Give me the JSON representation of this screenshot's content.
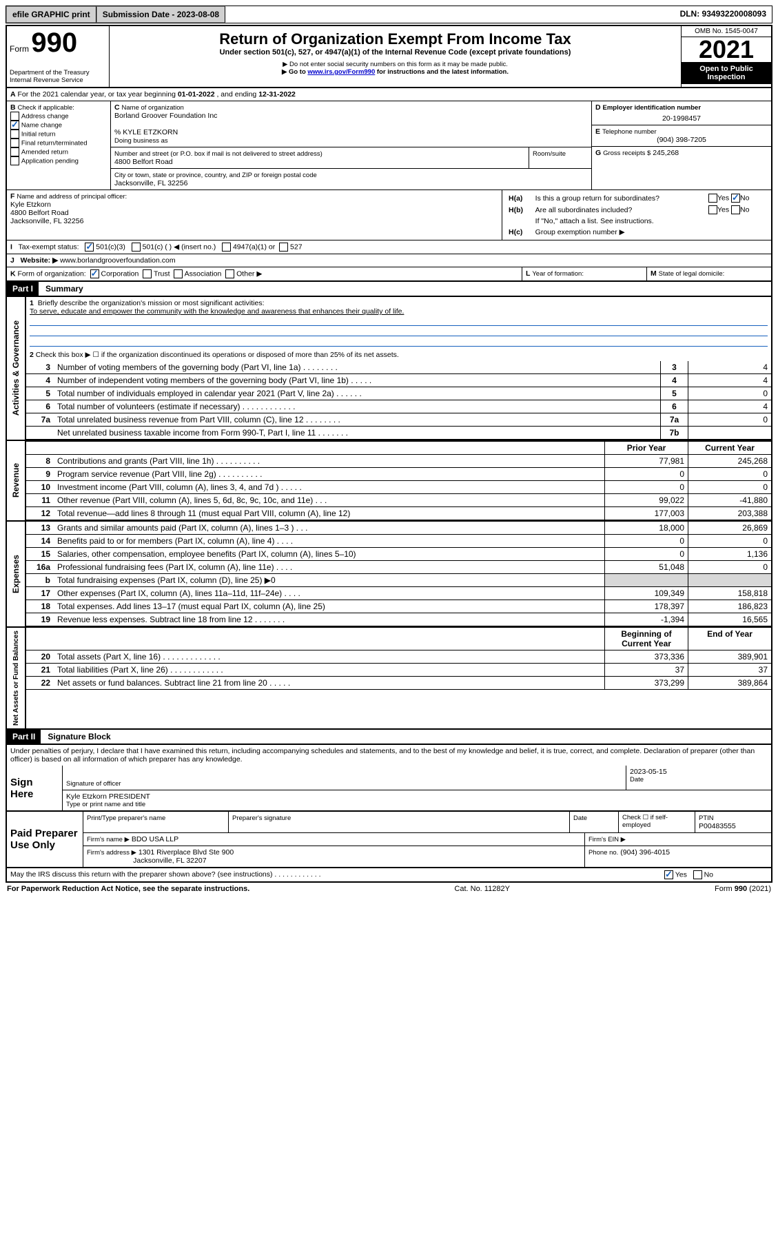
{
  "topbar": {
    "efile": "efile GRAPHIC print",
    "submission_label": "Submission Date - 2023-08-08",
    "dln": "DLN: 93493220008093"
  },
  "header": {
    "form_word": "Form",
    "form_num": "990",
    "title": "Return of Organization Exempt From Income Tax",
    "subtitle": "Under section 501(c), 527, or 4947(a)(1) of the Internal Revenue Code (except private foundations)",
    "note1": "▶ Do not enter social security numbers on this form as it may be made public.",
    "note2_pre": "▶ Go to ",
    "note2_link": "www.irs.gov/Form990",
    "note2_post": " for instructions and the latest information.",
    "dept": "Department of the Treasury",
    "irs": "Internal Revenue Service",
    "omb": "OMB No. 1545-0047",
    "year": "2021",
    "open_public": "Open to Public Inspection"
  },
  "periodA": {
    "text_pre": "For the 2021 calendar year, or tax year beginning ",
    "begin": "01-01-2022",
    "mid": " , and ending ",
    "end": "12-31-2022"
  },
  "boxB": {
    "label": "Check if applicable:",
    "addr_change": "Address change",
    "name_change": "Name change",
    "initial": "Initial return",
    "final": "Final return/terminated",
    "amended": "Amended return",
    "app_pending": "Application pending"
  },
  "boxC": {
    "name_label": "Name of organization",
    "name": "Borland Groover Foundation Inc",
    "care_of": "% KYLE ETZKORN",
    "dba_label": "Doing business as",
    "street_label": "Number and street (or P.O. box if mail is not delivered to street address)",
    "room_label": "Room/suite",
    "street": "4800 Belfort Road",
    "city_label": "City or town, state or province, country, and ZIP or foreign postal code",
    "city": "Jacksonville, FL  32256"
  },
  "boxD": {
    "label": "Employer identification number",
    "ein": "20-1998457"
  },
  "boxE": {
    "label": "Telephone number",
    "phone": "(904) 398-7205"
  },
  "boxG": {
    "label": "Gross receipts $",
    "amount": "245,268"
  },
  "boxF": {
    "label": "Name and address of principal officer:",
    "name": "Kyle Etzkorn",
    "street": "4800 Belfort Road",
    "city": "Jacksonville, FL  32256"
  },
  "boxH": {
    "ha": "Is this a group return for subordinates?",
    "hb": "Are all subordinates included?",
    "hnote": "If \"No,\" attach a list. See instructions.",
    "hc": "Group exemption number ▶",
    "yes": "Yes",
    "no": "No"
  },
  "boxI": {
    "label": "Tax-exempt status:",
    "opt1": "501(c)(3)",
    "opt2": "501(c) (  ) ◀ (insert no.)",
    "opt3": "4947(a)(1) or",
    "opt4": "527"
  },
  "boxJ": {
    "label": "Website: ▶",
    "url": "www.borlandgrooverfoundation.com"
  },
  "boxK": {
    "label": "Form of organization:",
    "corp": "Corporation",
    "trust": "Trust",
    "assoc": "Association",
    "other": "Other ▶"
  },
  "boxL": {
    "label": "Year of formation:"
  },
  "boxM": {
    "label": "State of legal domicile:"
  },
  "part1": {
    "header": "Part I",
    "title": "Summary",
    "line1_label": "Briefly describe the organization's mission or most significant activities:",
    "mission": "To serve, educate and empower the community with the knowledge and awareness that enhances their quality of life.",
    "line2": "Check this box ▶ ☐  if the organization discontinued its operations or disposed of more than 25% of its net assets.",
    "sections": {
      "gov": "Activities & Governance",
      "rev": "Revenue",
      "exp": "Expenses",
      "net": "Net Assets or Fund Balances"
    },
    "col_prior": "Prior Year",
    "col_current": "Current Year",
    "col_begin": "Beginning of Current Year",
    "col_end": "End of Year",
    "lines_gov": [
      {
        "n": "3",
        "desc": "Number of voting members of the governing body (Part VI, line 1a)   .    .    .    .    .    .    .    .",
        "box": "3",
        "val": "4"
      },
      {
        "n": "4",
        "desc": "Number of independent voting members of the governing body (Part VI, line 1b)   .    .    .    .    .",
        "box": "4",
        "val": "4"
      },
      {
        "n": "5",
        "desc": "Total number of individuals employed in calendar year 2021 (Part V, line 2a)   .    .    .    .    .    .",
        "box": "5",
        "val": "0"
      },
      {
        "n": "6",
        "desc": "Total number of volunteers (estimate if necessary)   .    .    .    .    .    .    .    .    .    .    .    .",
        "box": "6",
        "val": "4"
      },
      {
        "n": "7a",
        "desc": "Total unrelated business revenue from Part VIII, column (C), line 12   .    .    .    .    .    .    .    .",
        "box": "7a",
        "val": "0"
      },
      {
        "n": "",
        "desc": "Net unrelated business taxable income from Form 990-T, Part I, line 11   .    .    .    .    .    .    .",
        "box": "7b",
        "val": ""
      }
    ],
    "lines_rev": [
      {
        "n": "8",
        "desc": "Contributions and grants (Part VIII, line 1h)   .    .    .    .    .    .    .    .    .    .",
        "p": "77,981",
        "c": "245,268"
      },
      {
        "n": "9",
        "desc": "Program service revenue (Part VIII, line 2g)   .    .    .    .    .    .    .    .    .    .",
        "p": "0",
        "c": "0"
      },
      {
        "n": "10",
        "desc": "Investment income (Part VIII, column (A), lines 3, 4, and 7d )   .    .    .    .    .",
        "p": "0",
        "c": "0"
      },
      {
        "n": "11",
        "desc": "Other revenue (Part VIII, column (A), lines 5, 6d, 8c, 9c, 10c, and 11e)   .    .    .",
        "p": "99,022",
        "c": "-41,880"
      },
      {
        "n": "12",
        "desc": "Total revenue—add lines 8 through 11 (must equal Part VIII, column (A), line 12)",
        "p": "177,003",
        "c": "203,388"
      }
    ],
    "lines_exp": [
      {
        "n": "13",
        "desc": "Grants and similar amounts paid (Part IX, column (A), lines 1–3 )   .    .    .",
        "p": "18,000",
        "c": "26,869"
      },
      {
        "n": "14",
        "desc": "Benefits paid to or for members (Part IX, column (A), line 4)   .    .    .    .",
        "p": "0",
        "c": "0"
      },
      {
        "n": "15",
        "desc": "Salaries, other compensation, employee benefits (Part IX, column (A), lines 5–10)",
        "p": "0",
        "c": "1,136"
      },
      {
        "n": "16a",
        "desc": "Professional fundraising fees (Part IX, column (A), line 11e)   .    .    .    .",
        "p": "51,048",
        "c": "0"
      },
      {
        "n": "b",
        "desc": "Total fundraising expenses (Part IX, column (D), line 25) ▶0",
        "p": "shaded",
        "c": "shaded"
      },
      {
        "n": "17",
        "desc": "Other expenses (Part IX, column (A), lines 11a–11d, 11f–24e)   .    .    .    .",
        "p": "109,349",
        "c": "158,818"
      },
      {
        "n": "18",
        "desc": "Total expenses. Add lines 13–17 (must equal Part IX, column (A), line 25)",
        "p": "178,397",
        "c": "186,823"
      },
      {
        "n": "19",
        "desc": "Revenue less expenses. Subtract line 18 from line 12   .    .    .    .    .    .    .",
        "p": "-1,394",
        "c": "16,565"
      }
    ],
    "lines_net": [
      {
        "n": "20",
        "desc": "Total assets (Part X, line 16)   .    .    .    .    .    .    .    .    .    .    .    .    .",
        "p": "373,336",
        "c": "389,901"
      },
      {
        "n": "21",
        "desc": "Total liabilities (Part X, line 26)   .    .    .    .    .    .    .    .    .    .    .    .",
        "p": "37",
        "c": "37"
      },
      {
        "n": "22",
        "desc": "Net assets or fund balances. Subtract line 21 from line 20   .    .    .    .    .",
        "p": "373,299",
        "c": "389,864"
      }
    ]
  },
  "part2": {
    "header": "Part II",
    "title": "Signature Block",
    "penalties": "Under penalties of perjury, I declare that I have examined this return, including accompanying schedules and statements, and to the best of my knowledge and belief, it is true, correct, and complete. Declaration of preparer (other than officer) is based on all information of which preparer has any knowledge.",
    "sign_here": "Sign Here",
    "sig_officer": "Signature of officer",
    "date": "Date",
    "sig_date": "2023-05-15",
    "officer_name": "Kyle Etzkorn PRESIDENT",
    "type_name": "Type or print name and title",
    "paid_prep": "Paid Preparer Use Only",
    "prep_name_label": "Print/Type preparer's name",
    "prep_sig_label": "Preparer's signature",
    "date_label": "Date",
    "check_self": "Check ☐ if self-employed",
    "ptin_label": "PTIN",
    "ptin": "P00483555",
    "firm_name_label": "Firm's name    ▶",
    "firm_name": "BDO USA LLP",
    "firm_ein_label": "Firm's EIN ▶",
    "firm_addr_label": "Firm's address ▶",
    "firm_addr1": "1301 Riverplace Blvd Ste 900",
    "firm_addr2": "Jacksonville, FL  32207",
    "phone_label": "Phone no.",
    "phone": "(904) 396-4015",
    "discuss": "May the IRS discuss this return with the preparer shown above? (see instructions)   .    .    .    .    .    .    .    .    .    .    .    ."
  },
  "footer": {
    "paperwork": "For Paperwork Reduction Act Notice, see the separate instructions.",
    "cat": "Cat. No. 11282Y",
    "form": "Form 990 (2021)"
  },
  "letters": {
    "A": "A",
    "B": "B",
    "C": "C",
    "D": "D",
    "E": "E",
    "F": "F",
    "G": "G",
    "H_a": "H(a)",
    "H_b": "H(b)",
    "H_c": "H(c)",
    "I": "I",
    "J": "J",
    "K": "K",
    "L": "L",
    "M": "M"
  }
}
